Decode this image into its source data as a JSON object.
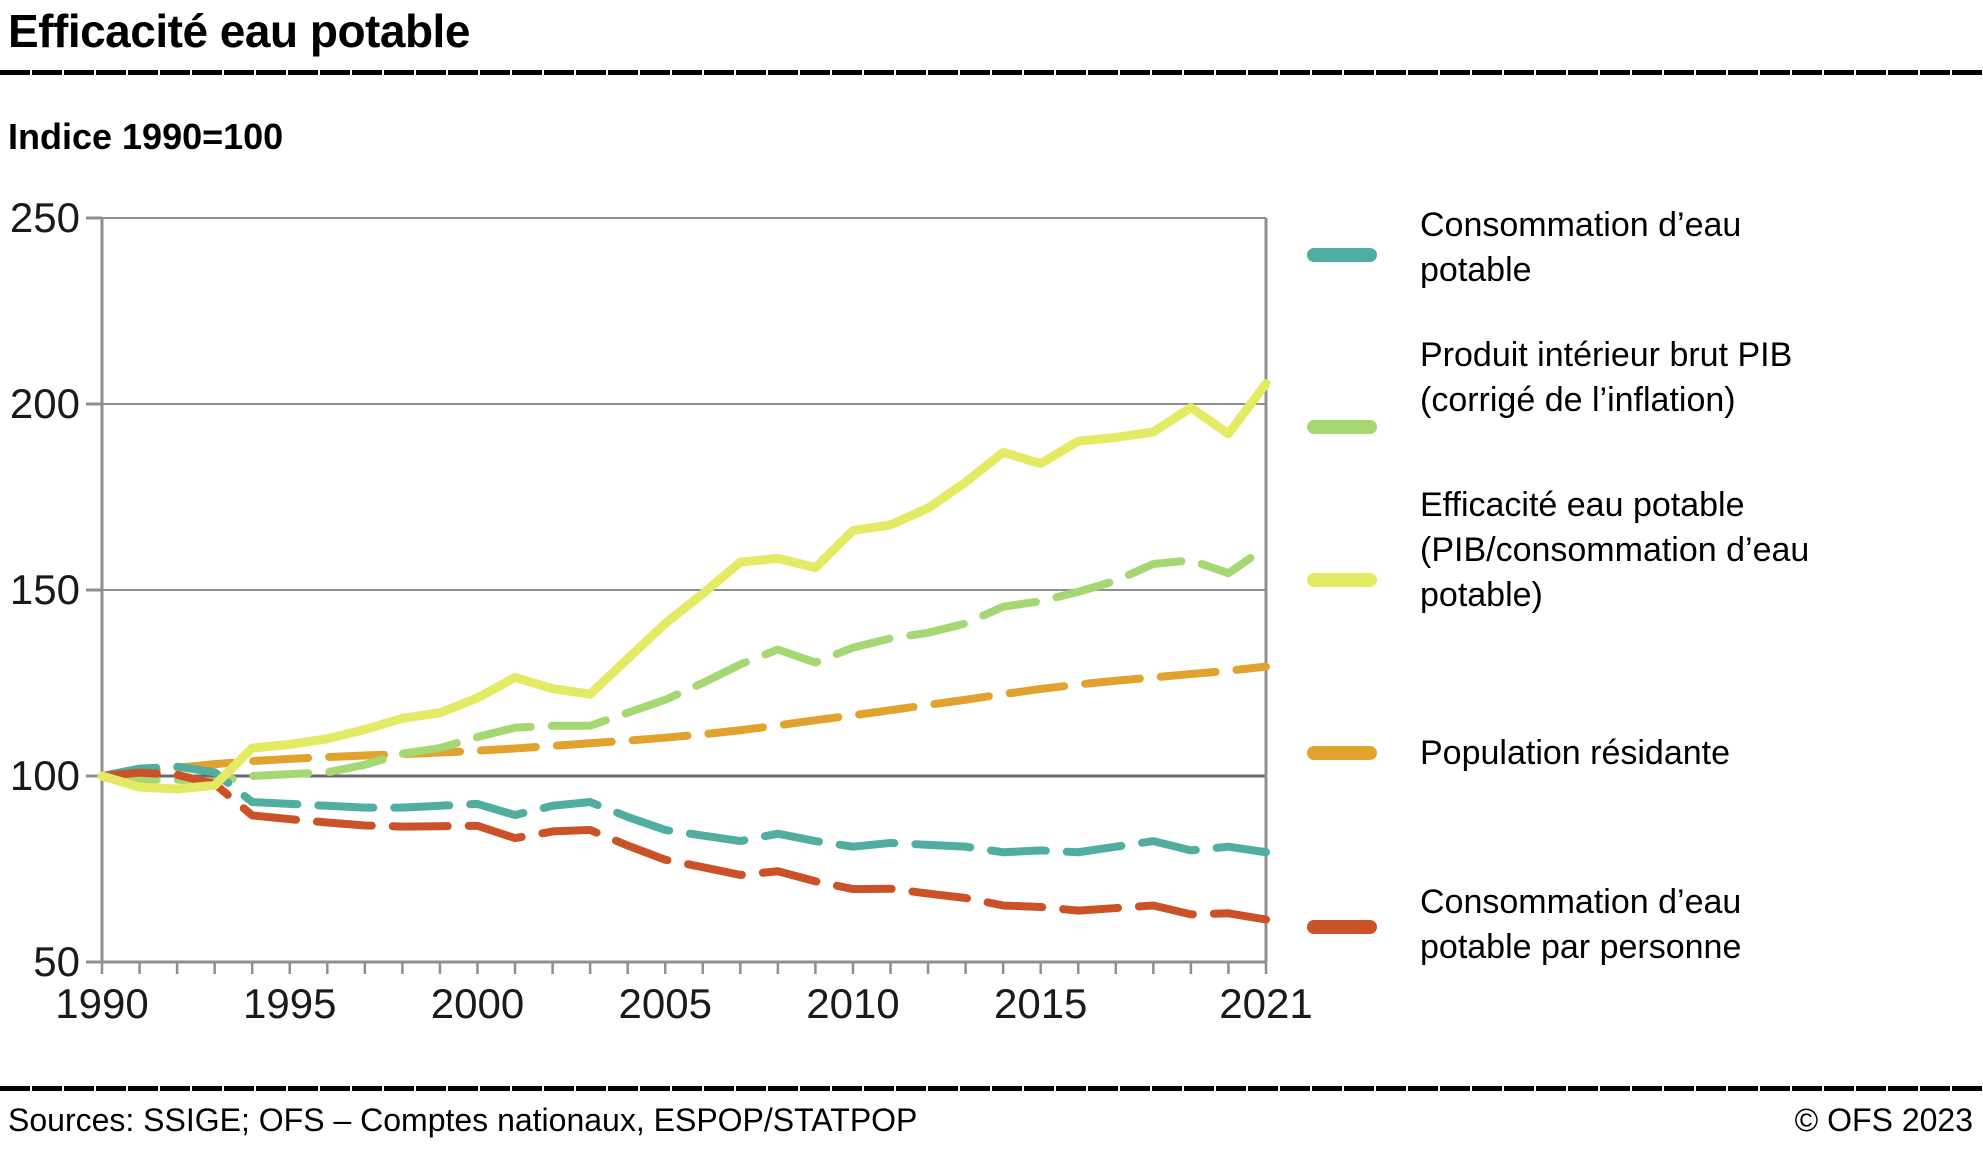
{
  "header": {
    "title": "Efficacité eau potable",
    "subtitle": "Indice 1990=100"
  },
  "footer": {
    "sources": "Sources: SSIGE; OFS – Comptes nationaux, ESPOP/STATPOP",
    "copyright": "© OFS 2023"
  },
  "chart_data": {
    "type": "line",
    "title": "Efficacité eau potable",
    "subtitle": "Indice 1990=100",
    "xlabel": "",
    "ylabel": "",
    "x_range": [
      1990,
      2021
    ],
    "x_ticks": [
      1990,
      1995,
      2000,
      2005,
      2010,
      2015,
      2021
    ],
    "ylim": [
      50,
      250
    ],
    "y_ticks": [
      50,
      100,
      150,
      200,
      250
    ],
    "baseline": 100,
    "grid": "horizontal",
    "legend_position": "right",
    "grid_color": "#8F8F8F",
    "baseline_color": "#6A6A6A",
    "series": [
      {
        "name": "Consommation d’eau potable",
        "color": "#4FAE9F",
        "dashed": true,
        "values": [
          100,
          102,
          102.5,
          101,
          93,
          92.5,
          92,
          91.5,
          91.5,
          92,
          92.5,
          89.5,
          92,
          93,
          89,
          85.5,
          84,
          82.5,
          84.5,
          82.5,
          81,
          82,
          81.5,
          81,
          79.5,
          80,
          79.5,
          81,
          82.5,
          80,
          81,
          79.5
        ]
      },
      {
        "name": "Produit intérieur brut PIB (corrigé de l’inflation)",
        "color": "#A5D873",
        "dashed": true,
        "values": [
          100,
          99,
          99,
          98.5,
          100,
          100.5,
          101,
          103,
          106,
          107.5,
          110.5,
          113,
          113.5,
          113.5,
          117,
          120.5,
          125,
          130,
          134,
          130.5,
          134.5,
          137,
          138.5,
          141,
          145.5,
          147,
          149.5,
          152.5,
          157,
          158,
          154.5,
          161.5
        ]
      },
      {
        "name": "Efficacité eau potable (PIB/consommation d’eau potable)",
        "color": "#E4EA64",
        "dashed": false,
        "values": [
          100,
          97,
          96.5,
          97.5,
          107.5,
          108.5,
          110,
          112.5,
          115.5,
          117,
          121,
          126.5,
          123.5,
          122,
          131.5,
          141,
          149,
          157.5,
          158.5,
          156,
          166,
          167.5,
          172,
          179,
          187,
          184,
          190,
          191,
          192.5,
          199,
          192,
          205.5
        ]
      },
      {
        "name": "Population résidante",
        "color": "#E1A32E",
        "dashed": true,
        "values": [
          100,
          101.1,
          102.2,
          103.2,
          104,
          104.6,
          105.1,
          105.5,
          105.9,
          106.3,
          106.8,
          107.4,
          108.1,
          108.8,
          109.5,
          110.3,
          111.2,
          112.3,
          113.6,
          115,
          116.3,
          117.7,
          119.1,
          120.5,
          122,
          123.4,
          124.6,
          125.6,
          126.5,
          127.4,
          128.3,
          129.4
        ]
      },
      {
        "name": "Consommation d’eau potable par personne",
        "color": "#CB5227",
        "dashed": true,
        "values": [
          100,
          100.9,
          100.3,
          97.9,
          89.4,
          88.4,
          87.5,
          86.7,
          86.4,
          86.5,
          86.6,
          83.3,
          85.1,
          85.5,
          81.3,
          77.5,
          75.5,
          73.4,
          74.4,
          71.7,
          69.6,
          69.7,
          68.4,
          67.2,
          65.2,
          64.8,
          63.8,
          64.5,
          65.2,
          62.8,
          63.1,
          61.4
        ]
      }
    ]
  }
}
